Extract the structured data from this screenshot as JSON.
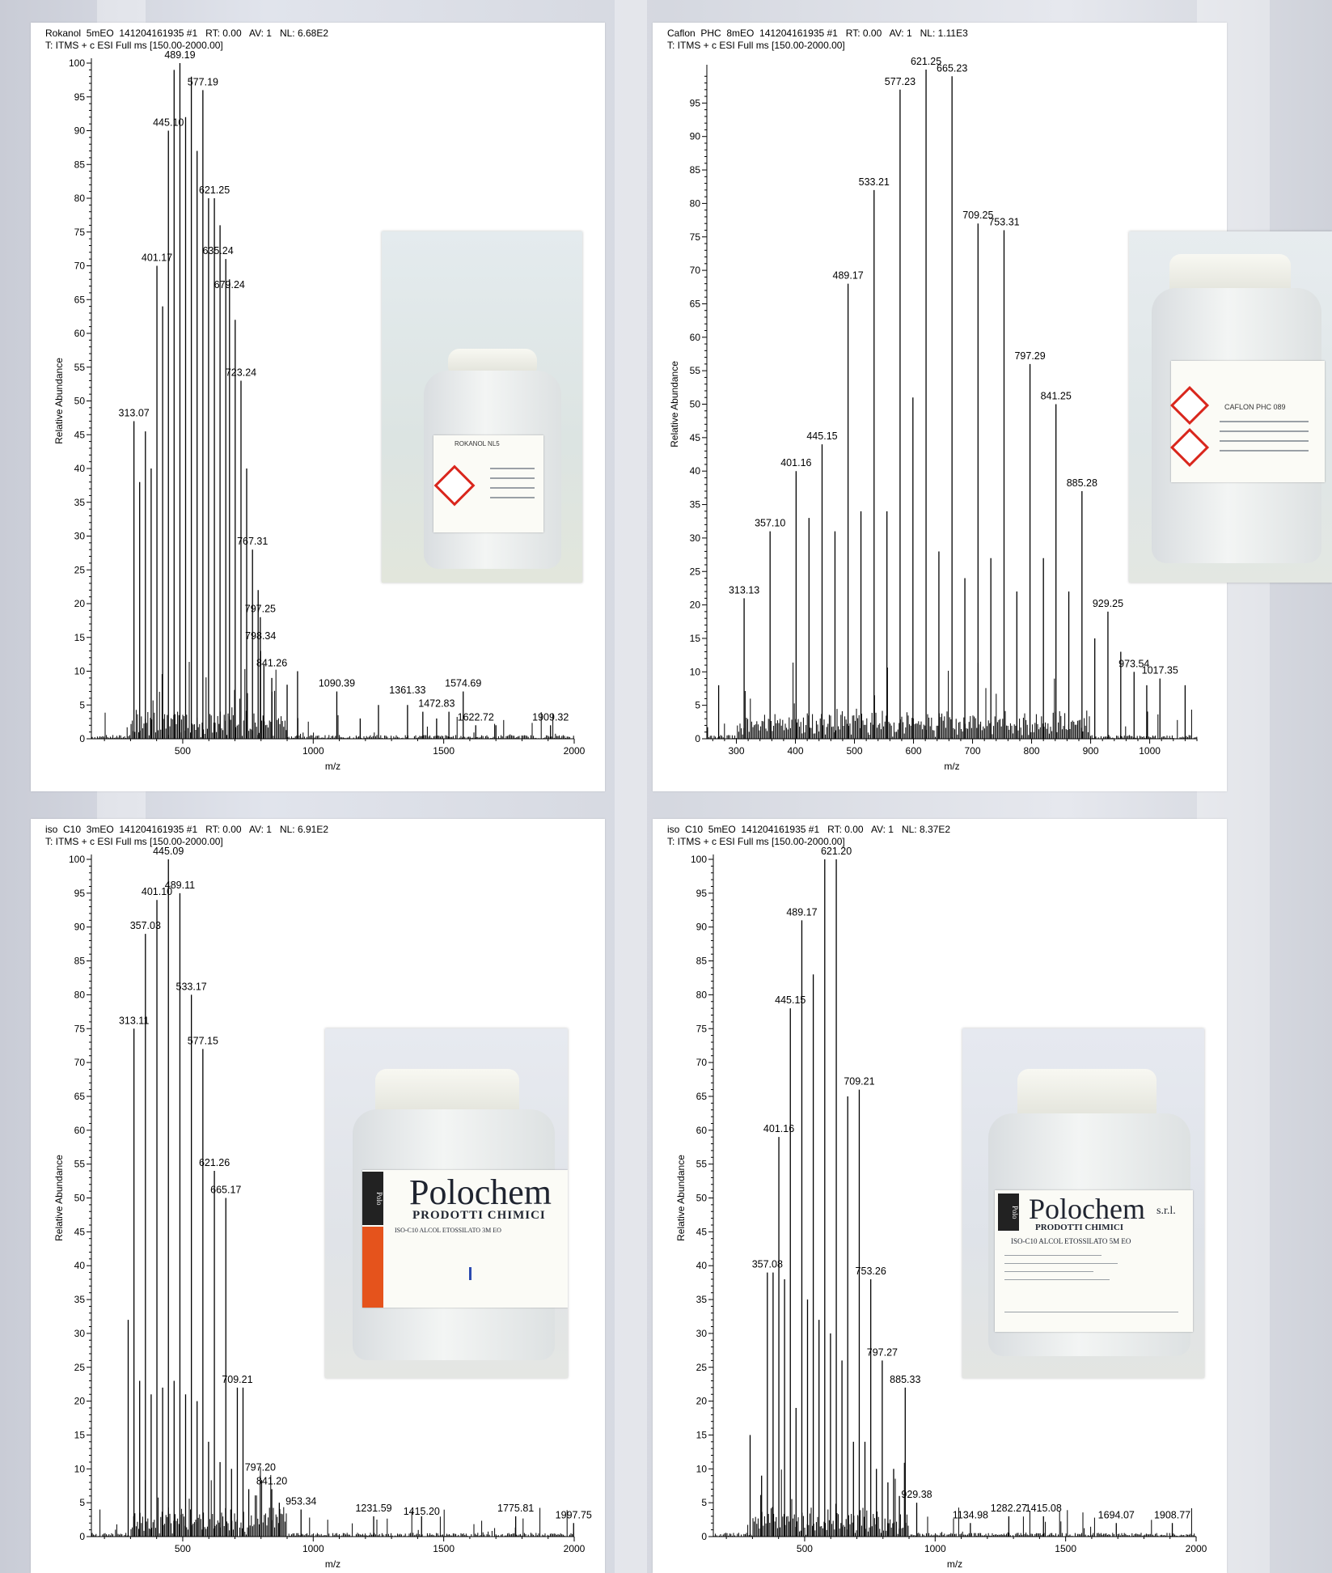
{
  "chart_data": [
    {
      "type": "bar",
      "header_line1": "Rokanol  5mEO  141204161935 #1   RT: 0.00   AV: 1   NL: 6.68E2",
      "header_line2": "T: ITMS + c ESI Full ms [150.00-2000.00]",
      "xlabel": "m/z",
      "ylabel": "Relative Abundance",
      "xlim": [
        150,
        2000
      ],
      "ylim": [
        0,
        100
      ],
      "xticks": [
        500,
        1000,
        1500,
        2000
      ],
      "yticks": [
        0,
        5,
        10,
        15,
        20,
        25,
        30,
        35,
        40,
        45,
        50,
        55,
        60,
        65,
        70,
        75,
        80,
        85,
        90,
        95,
        100
      ],
      "peaks": [
        [
          313.07,
          47
        ],
        [
          335,
          38
        ],
        [
          357,
          45.5
        ],
        [
          379,
          40
        ],
        [
          401.17,
          70
        ],
        [
          423,
          64
        ],
        [
          445.1,
          90
        ],
        [
          467,
          99
        ],
        [
          489.19,
          100
        ],
        [
          511,
          92
        ],
        [
          533,
          98
        ],
        [
          555,
          87
        ],
        [
          577.19,
          96
        ],
        [
          599,
          80
        ],
        [
          621.25,
          80
        ],
        [
          643,
          76
        ],
        [
          665,
          71
        ],
        [
          679.24,
          68
        ],
        [
          701,
          62
        ],
        [
          723.24,
          53
        ],
        [
          745,
          40
        ],
        [
          767.31,
          28
        ],
        [
          789,
          22
        ],
        [
          797.25,
          18
        ],
        [
          798.34,
          13
        ],
        [
          811,
          11
        ],
        [
          841.26,
          9
        ],
        [
          900,
          8
        ],
        [
          940,
          10
        ],
        [
          1090.39,
          7
        ],
        [
          1180,
          3
        ],
        [
          1250,
          5
        ],
        [
          1361.33,
          5
        ],
        [
          1420,
          4
        ],
        [
          1472.83,
          3
        ],
        [
          1520,
          4
        ],
        [
          1574.69,
          7
        ],
        [
          1622.72,
          2
        ],
        [
          1700,
          2
        ],
        [
          1909.32,
          2
        ]
      ],
      "labels": [
        {
          "x": 313.07,
          "y": 47,
          "text": "313.07"
        },
        {
          "x": 401.17,
          "y": 70,
          "text": "401.17"
        },
        {
          "x": 445.1,
          "y": 90,
          "text": "445.10"
        },
        {
          "x": 489.19,
          "y": 100,
          "text": "489.19"
        },
        {
          "x": 577.19,
          "y": 96,
          "text": "577.19"
        },
        {
          "x": 621.25,
          "y": 80,
          "text": "621.25"
        },
        {
          "x": 635.24,
          "y": 71,
          "text": "635.24"
        },
        {
          "x": 679.24,
          "y": 66,
          "text": "679.24"
        },
        {
          "x": 723.24,
          "y": 53,
          "text": "723.24"
        },
        {
          "x": 767.31,
          "y": 28,
          "text": "767.31"
        },
        {
          "x": 797.25,
          "y": 18,
          "text": "797.25"
        },
        {
          "x": 798.34,
          "y": 14,
          "text": "798.34"
        },
        {
          "x": 841.26,
          "y": 10,
          "text": "841.26"
        },
        {
          "x": 1090.39,
          "y": 7,
          "text": "1090.39"
        },
        {
          "x": 1361.33,
          "y": 6,
          "text": "1361.33"
        },
        {
          "x": 1472.83,
          "y": 4,
          "text": "1472.83"
        },
        {
          "x": 1574.69,
          "y": 7,
          "text": "1574.69"
        },
        {
          "x": 1622.72,
          "y": 2,
          "text": "1622.72"
        },
        {
          "x": 1909.32,
          "y": 2,
          "text": "1909.32"
        }
      ]
    },
    {
      "type": "bar",
      "header_line1": "Caflon  PHC  8mEO  141204161935 #1   RT: 0.00   AV: 1   NL: 1.11E3",
      "header_line2": "T: ITMS + c ESI Full ms [150.00-2000.00]",
      "xlabel": "m/z",
      "ylabel": "Relative Abundance",
      "xlim": [
        250,
        1080
      ],
      "ylim": [
        0,
        100
      ],
      "xticks": [
        300,
        400,
        500,
        600,
        700,
        800,
        900,
        1000
      ],
      "yticks": [
        0,
        5,
        10,
        15,
        20,
        25,
        30,
        35,
        40,
        45,
        50,
        55,
        60,
        65,
        70,
        75,
        80,
        85,
        90,
        95
      ],
      "peaks": [
        [
          270,
          8
        ],
        [
          313.13,
          21
        ],
        [
          357.1,
          31
        ],
        [
          401.16,
          40
        ],
        [
          423,
          33
        ],
        [
          445.15,
          44
        ],
        [
          467,
          31
        ],
        [
          489.17,
          68
        ],
        [
          511,
          34
        ],
        [
          533.21,
          82
        ],
        [
          555,
          34
        ],
        [
          577.23,
          97
        ],
        [
          599,
          51
        ],
        [
          621.25,
          100
        ],
        [
          643,
          28
        ],
        [
          665.23,
          99
        ],
        [
          687,
          24
        ],
        [
          709.25,
          77
        ],
        [
          731,
          27
        ],
        [
          753.31,
          76
        ],
        [
          775,
          22
        ],
        [
          797.29,
          56
        ],
        [
          820,
          27
        ],
        [
          841.25,
          50
        ],
        [
          863,
          22
        ],
        [
          885.28,
          37
        ],
        [
          907,
          15
        ],
        [
          929.25,
          19
        ],
        [
          951,
          13
        ],
        [
          973.54,
          10
        ],
        [
          995,
          8
        ],
        [
          1017.35,
          9
        ],
        [
          1060,
          8
        ]
      ],
      "labels": [
        {
          "x": 313.13,
          "y": 21,
          "text": "313.13"
        },
        {
          "x": 357.1,
          "y": 31,
          "text": "357.10"
        },
        {
          "x": 401.16,
          "y": 40,
          "text": "401.16"
        },
        {
          "x": 445.15,
          "y": 44,
          "text": "445.15"
        },
        {
          "x": 489.17,
          "y": 68,
          "text": "489.17"
        },
        {
          "x": 533.21,
          "y": 82,
          "text": "533.21"
        },
        {
          "x": 577.23,
          "y": 97,
          "text": "577.23"
        },
        {
          "x": 621.25,
          "y": 100,
          "text": "621.25"
        },
        {
          "x": 665.23,
          "y": 99,
          "text": "665.23"
        },
        {
          "x": 709.25,
          "y": 77,
          "text": "709.25"
        },
        {
          "x": 753.31,
          "y": 76,
          "text": "753.31"
        },
        {
          "x": 797.29,
          "y": 56,
          "text": "797.29"
        },
        {
          "x": 841.25,
          "y": 50,
          "text": "841.25"
        },
        {
          "x": 885.28,
          "y": 37,
          "text": "885.28"
        },
        {
          "x": 929.25,
          "y": 19,
          "text": "929.25"
        },
        {
          "x": 973.54,
          "y": 10,
          "text": "973.54"
        },
        {
          "x": 1017.35,
          "y": 9,
          "text": "1017.35"
        }
      ]
    },
    {
      "type": "bar",
      "header_line1": "iso  C10  3mEO  141204161935 #1   RT: 0.00   AV: 1   NL: 6.91E2",
      "header_line2": "T: ITMS + c ESI Full ms [150.00-2000.00]",
      "xlabel": "m/z",
      "ylabel": "Relative Abundance",
      "xlim": [
        150,
        2000
      ],
      "ylim": [
        0,
        100
      ],
      "xticks": [
        500,
        1000,
        1500,
        2000
      ],
      "yticks": [
        0,
        5,
        10,
        15,
        20,
        25,
        30,
        35,
        40,
        45,
        50,
        55,
        60,
        65,
        70,
        75,
        80,
        85,
        90,
        95,
        100
      ],
      "peaks": [
        [
          291,
          32
        ],
        [
          313.11,
          75
        ],
        [
          335,
          23
        ],
        [
          357.03,
          89
        ],
        [
          379,
          21
        ],
        [
          401.1,
          94
        ],
        [
          423,
          22
        ],
        [
          445.09,
          100
        ],
        [
          467,
          23
        ],
        [
          489.11,
          95
        ],
        [
          511,
          21
        ],
        [
          533.17,
          80
        ],
        [
          555,
          20
        ],
        [
          577.15,
          72
        ],
        [
          599,
          14
        ],
        [
          621.26,
          54
        ],
        [
          643,
          11
        ],
        [
          665.17,
          50
        ],
        [
          687,
          10
        ],
        [
          709.21,
          22
        ],
        [
          731,
          22
        ],
        [
          753,
          7
        ],
        [
          797.2,
          9
        ],
        [
          841.2,
          7
        ],
        [
          870,
          5
        ],
        [
          953.34,
          4
        ],
        [
          1231.59,
          3
        ],
        [
          1415.2,
          3
        ],
        [
          1775.81,
          3
        ],
        [
          1997.75,
          2
        ]
      ],
      "labels": [
        {
          "x": 313.11,
          "y": 75,
          "text": "313.11"
        },
        {
          "x": 357.03,
          "y": 89,
          "text": "357.03"
        },
        {
          "x": 401.1,
          "y": 94,
          "text": "401.10"
        },
        {
          "x": 445.09,
          "y": 100,
          "text": "445.09"
        },
        {
          "x": 489.11,
          "y": 95,
          "text": "489.11"
        },
        {
          "x": 533.17,
          "y": 80,
          "text": "533.17"
        },
        {
          "x": 577.15,
          "y": 72,
          "text": "577.15"
        },
        {
          "x": 621.26,
          "y": 54,
          "text": "621.26"
        },
        {
          "x": 665.17,
          "y": 50,
          "text": "665.17"
        },
        {
          "x": 709.21,
          "y": 22,
          "text": "709.21"
        },
        {
          "x": 797.2,
          "y": 9,
          "text": "797.20"
        },
        {
          "x": 841.2,
          "y": 7,
          "text": "841.20"
        },
        {
          "x": 953.34,
          "y": 4,
          "text": "953.34"
        },
        {
          "x": 1231.59,
          "y": 3,
          "text": "1231.59"
        },
        {
          "x": 1415.2,
          "y": 2.5,
          "text": "1415.20"
        },
        {
          "x": 1775.81,
          "y": 3,
          "text": "1775.81"
        },
        {
          "x": 1997.75,
          "y": 2,
          "text": "1997.75"
        }
      ]
    },
    {
      "type": "bar",
      "header_line1": "iso  C10  5mEO  141204161935 #1   RT: 0.00   AV: 1   NL: 8.37E2",
      "header_line2": "T: ITMS + c ESI Full ms [150.00-2000.00]",
      "xlabel": "m/z",
      "ylabel": "Relative Abundance",
      "xlim": [
        150,
        2000
      ],
      "ylim": [
        0,
        100
      ],
      "xticks": [
        500,
        1000,
        1500,
        2000
      ],
      "yticks": [
        0,
        5,
        10,
        15,
        20,
        25,
        30,
        35,
        40,
        45,
        50,
        55,
        60,
        65,
        70,
        75,
        80,
        85,
        90,
        95,
        100
      ],
      "peaks": [
        [
          291,
          15
        ],
        [
          335,
          9
        ],
        [
          357.08,
          39
        ],
        [
          379,
          39
        ],
        [
          401.16,
          59
        ],
        [
          423,
          38
        ],
        [
          445.15,
          78
        ],
        [
          467,
          19
        ],
        [
          489.17,
          91
        ],
        [
          511,
          35
        ],
        [
          533,
          83
        ],
        [
          555,
          32
        ],
        [
          577,
          100
        ],
        [
          599,
          30
        ],
        [
          621.2,
          100
        ],
        [
          643,
          26
        ],
        [
          665,
          65
        ],
        [
          687,
          14
        ],
        [
          709.21,
          66
        ],
        [
          731,
          14
        ],
        [
          753.26,
          38
        ],
        [
          775,
          10
        ],
        [
          797.27,
          26
        ],
        [
          819,
          8
        ],
        [
          841,
          10
        ],
        [
          863,
          6
        ],
        [
          885.33,
          22
        ],
        [
          929.38,
          5
        ],
        [
          1134.98,
          2
        ],
        [
          1282.27,
          3
        ],
        [
          1415.08,
          3
        ],
        [
          1694.07,
          2
        ],
        [
          1908.77,
          2
        ]
      ],
      "labels": [
        {
          "x": 357.08,
          "y": 39,
          "text": "357.08"
        },
        {
          "x": 401.16,
          "y": 59,
          "text": "401.16"
        },
        {
          "x": 445.15,
          "y": 78,
          "text": "445.15"
        },
        {
          "x": 489.17,
          "y": 91,
          "text": "489.17"
        },
        {
          "x": 621.2,
          "y": 100,
          "text": "621.20"
        },
        {
          "x": 709.21,
          "y": 66,
          "text": "709.21"
        },
        {
          "x": 753.26,
          "y": 38,
          "text": "753.26"
        },
        {
          "x": 797.27,
          "y": 26,
          "text": "797.27"
        },
        {
          "x": 885.33,
          "y": 22,
          "text": "885.33"
        },
        {
          "x": 929.38,
          "y": 5,
          "text": "929.38"
        },
        {
          "x": 1134.98,
          "y": 2,
          "text": "1134.98"
        },
        {
          "x": 1282.27,
          "y": 3,
          "text": "1282.27"
        },
        {
          "x": 1415.08,
          "y": 3,
          "text": "1415.08"
        },
        {
          "x": 1694.07,
          "y": 2,
          "text": "1694.07"
        },
        {
          "x": 1908.77,
          "y": 2,
          "text": "1908.77"
        }
      ]
    }
  ],
  "photos": [
    {
      "label_text": "ROKANOL NL5",
      "icon": "ghs-corrosive-pictogram"
    },
    {
      "label_text": "CAFLON PHC 089",
      "icon": "ghs-corrosive-pictogram"
    },
    {
      "brand": "Polochem",
      "subtitle": "PRODOTTI CHIMICI",
      "product": "ISO-C10 ALCOL ETOSSILATO 3M EO",
      "icon": "polochem-logo"
    },
    {
      "brand": "Polochem",
      "brand_suffix": "s.r.l.",
      "subtitle": "PRODOTTI CHIMICI",
      "product": "ISO-C10 ALCOL ETOSSILATO 5M EO",
      "icon": "polochem-logo"
    }
  ]
}
